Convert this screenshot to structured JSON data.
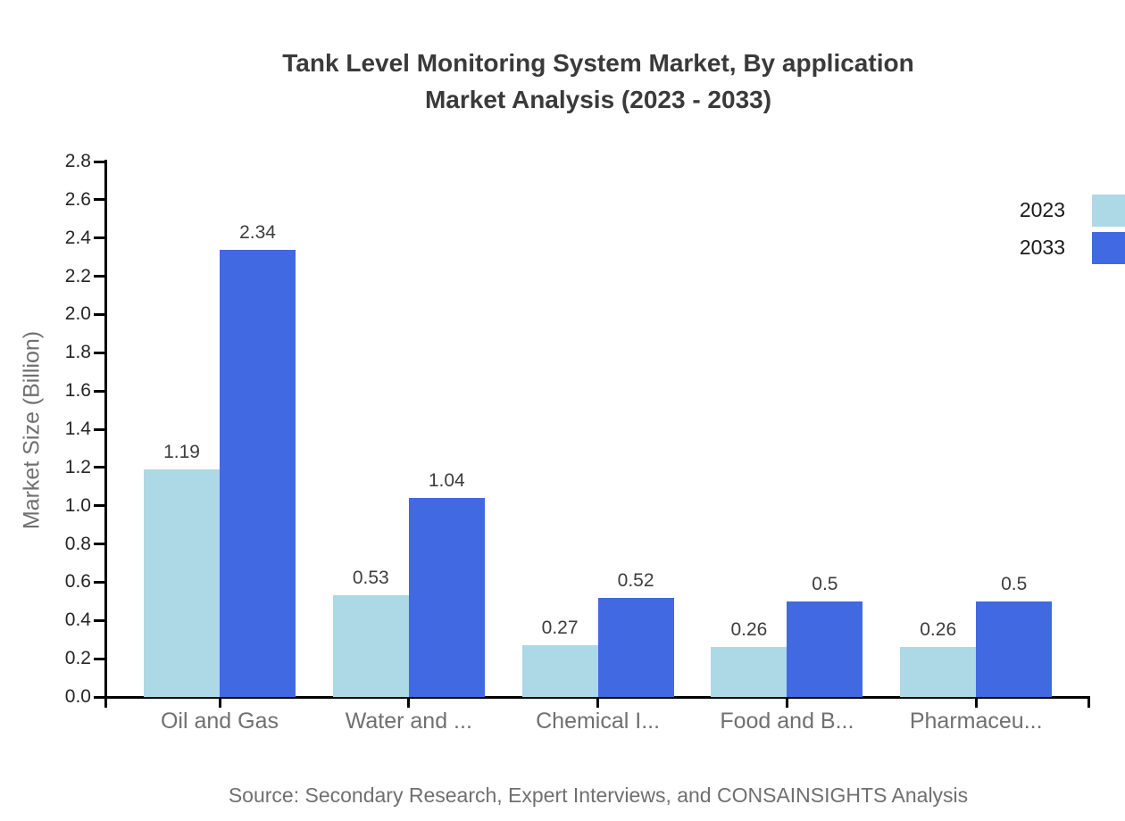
{
  "figure": {
    "title_line1": "Tank Level Monitoring System Market, By application",
    "title_line2": "Market Analysis (2023 - 2033)",
    "source": "Source: Secondary Research, Expert Interviews, and CONSAINSIGHTS Analysis"
  },
  "chart_data": {
    "type": "bar",
    "title": "Tank Level Monitoring System Market, By application Market Analysis (2023 - 2033)",
    "categories": [
      "Oil and Gas",
      "Water and ...",
      "Chemical I...",
      "Food and B...",
      "Pharmaceu..."
    ],
    "series": [
      {
        "name": "2023",
        "color": "#ADD8E6",
        "values": [
          1.19,
          0.53,
          0.27,
          0.26,
          0.26
        ]
      },
      {
        "name": "2033",
        "color": "#4169E1",
        "values": [
          2.34,
          1.04,
          0.52,
          0.5,
          0.5
        ]
      }
    ],
    "ylabel": "Market Size (Billion)",
    "ylim": [
      0,
      2.8
    ],
    "ytick_step": 0.2,
    "grid": false,
    "legend_position": "top-right",
    "value_labels": true,
    "axis_color": "#000000",
    "label_color": "#707070"
  }
}
